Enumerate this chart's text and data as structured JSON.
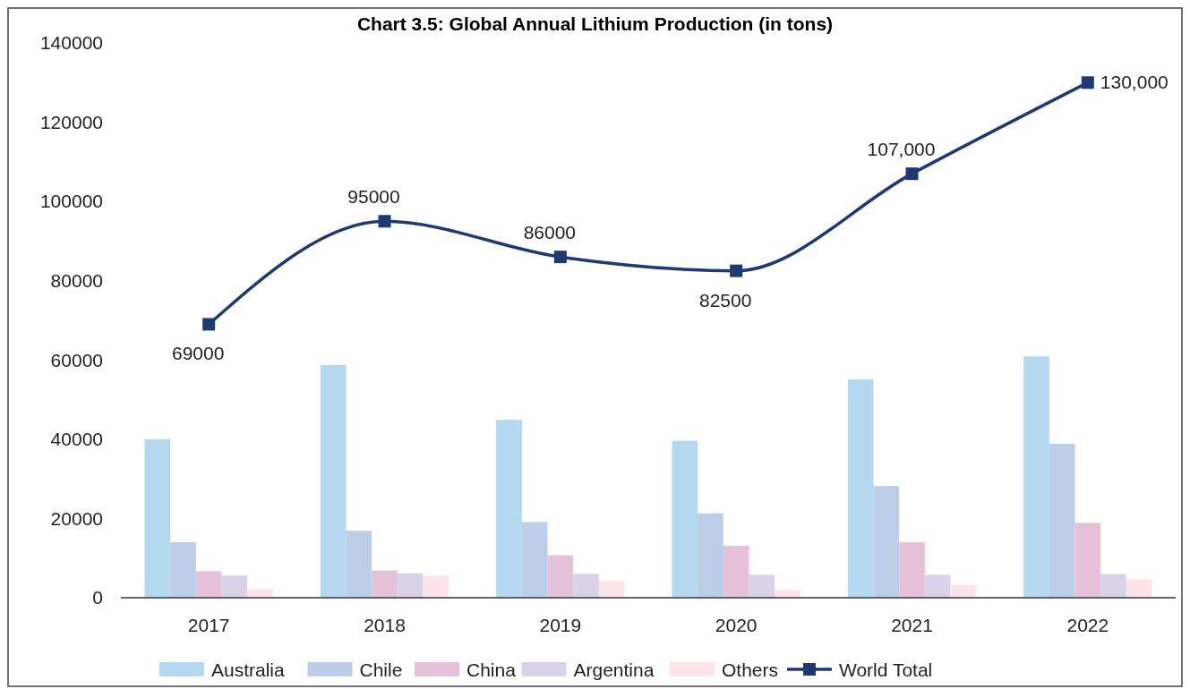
{
  "chart_data": {
    "type": "bar",
    "title": "Chart 3.5: Global Annual Lithium Production (in tons)",
    "categories": [
      "2017",
      "2018",
      "2019",
      "2020",
      "2021",
      "2022"
    ],
    "series": [
      {
        "name": "Australia",
        "color": "#b3d8ef",
        "values": [
          40000,
          58700,
          44900,
          39600,
          55100,
          60900
        ]
      },
      {
        "name": "Chile",
        "color": "#bccde8",
        "values": [
          14000,
          16900,
          19100,
          21300,
          28200,
          38900
        ]
      },
      {
        "name": "China",
        "color": "#e5c2da",
        "values": [
          6700,
          6900,
          10700,
          13100,
          14000,
          18900
        ]
      },
      {
        "name": "Argentina",
        "color": "#d8d3e8",
        "values": [
          5600,
          6200,
          6000,
          5800,
          5800,
          6000
        ]
      },
      {
        "name": "Others",
        "color": "#fce4ea",
        "values": [
          2200,
          5600,
          4400,
          2000,
          3300,
          4700
        ]
      },
      {
        "name": "World Total",
        "type": "line",
        "color": "#1f3a73",
        "values": [
          69000,
          95000,
          86000,
          82500,
          107000,
          130000
        ],
        "value_labels": [
          "69000",
          "95000",
          "86000",
          "82500",
          "107,000",
          "130,000"
        ],
        "marker": "square"
      }
    ],
    "ylim": [
      0,
      140000
    ],
    "yticks": [
      0,
      20000,
      40000,
      60000,
      80000,
      100000,
      120000,
      140000
    ],
    "grid": false,
    "legend": "bottom"
  }
}
